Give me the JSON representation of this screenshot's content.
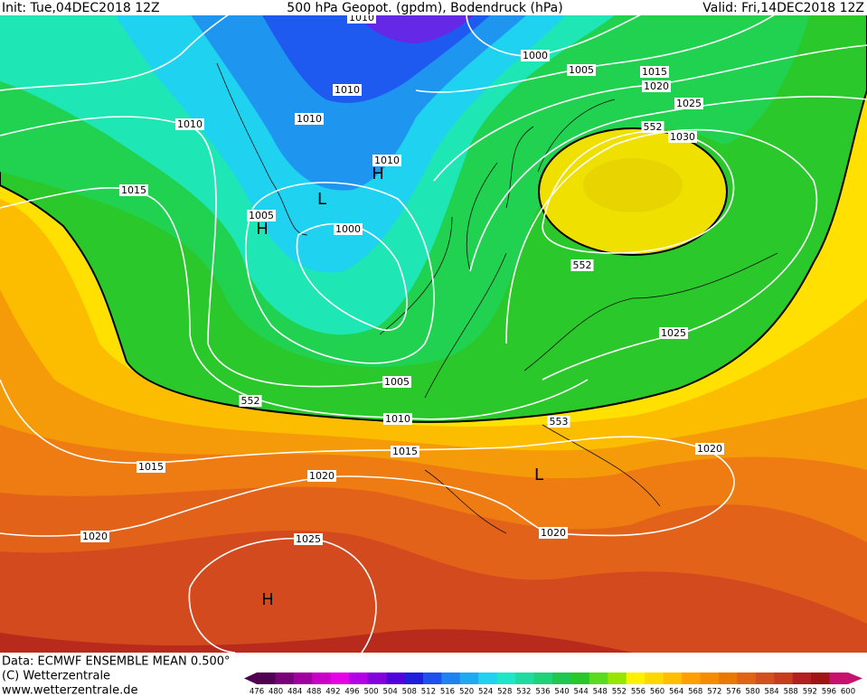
{
  "header": {
    "init": "Init: Tue,04DEC2018 12Z",
    "title": "500 hPa Geopot. (gpdm), Bodendruck (hPa)",
    "valid": "Valid: Fri,14DEC2018 12Z"
  },
  "isobar_labels": [
    "1010",
    "1000",
    "1005",
    "1015",
    "1020",
    "1025",
    "552",
    "1030",
    "1010",
    "1010",
    "1010",
    "1010",
    "1015",
    "1005",
    "1000",
    "552",
    "1025",
    "1005",
    "552",
    "1010",
    "553",
    "1015",
    "1020",
    "1015",
    "1020",
    "1020",
    "1020",
    "1025"
  ],
  "pressure_centers": [
    "H",
    "L",
    "H",
    "L",
    "H"
  ],
  "footer": {
    "data": "Data: ECMWF ENSEMBLE MEAN 0.500°",
    "copyright": "(C) Wetterzentrale",
    "url": "www.wetterzentrale.de"
  },
  "legend": {
    "labels": [
      476,
      480,
      484,
      488,
      492,
      496,
      500,
      504,
      508,
      512,
      516,
      520,
      524,
      528,
      532,
      536,
      540,
      544,
      548,
      552,
      556,
      560,
      564,
      568,
      572,
      576,
      580,
      584,
      588,
      592,
      596,
      600
    ],
    "colors": [
      "#500050",
      "#780078",
      "#a000a0",
      "#c800c8",
      "#e600e6",
      "#b400e6",
      "#8200dc",
      "#5000dc",
      "#1e1edc",
      "#1e50f0",
      "#1e82f0",
      "#1eaaf0",
      "#1ed2f0",
      "#1ee6c8",
      "#1edca0",
      "#1ed278",
      "#1ec850",
      "#28c828",
      "#5adc1e",
      "#96e600",
      "#fff000",
      "#ffd700",
      "#ffbe00",
      "#ffa000",
      "#f58c00",
      "#eb7800",
      "#e16414",
      "#d2501e",
      "#c83c1e",
      "#b41e1e",
      "#a01414",
      "#c8106e"
    ]
  }
}
